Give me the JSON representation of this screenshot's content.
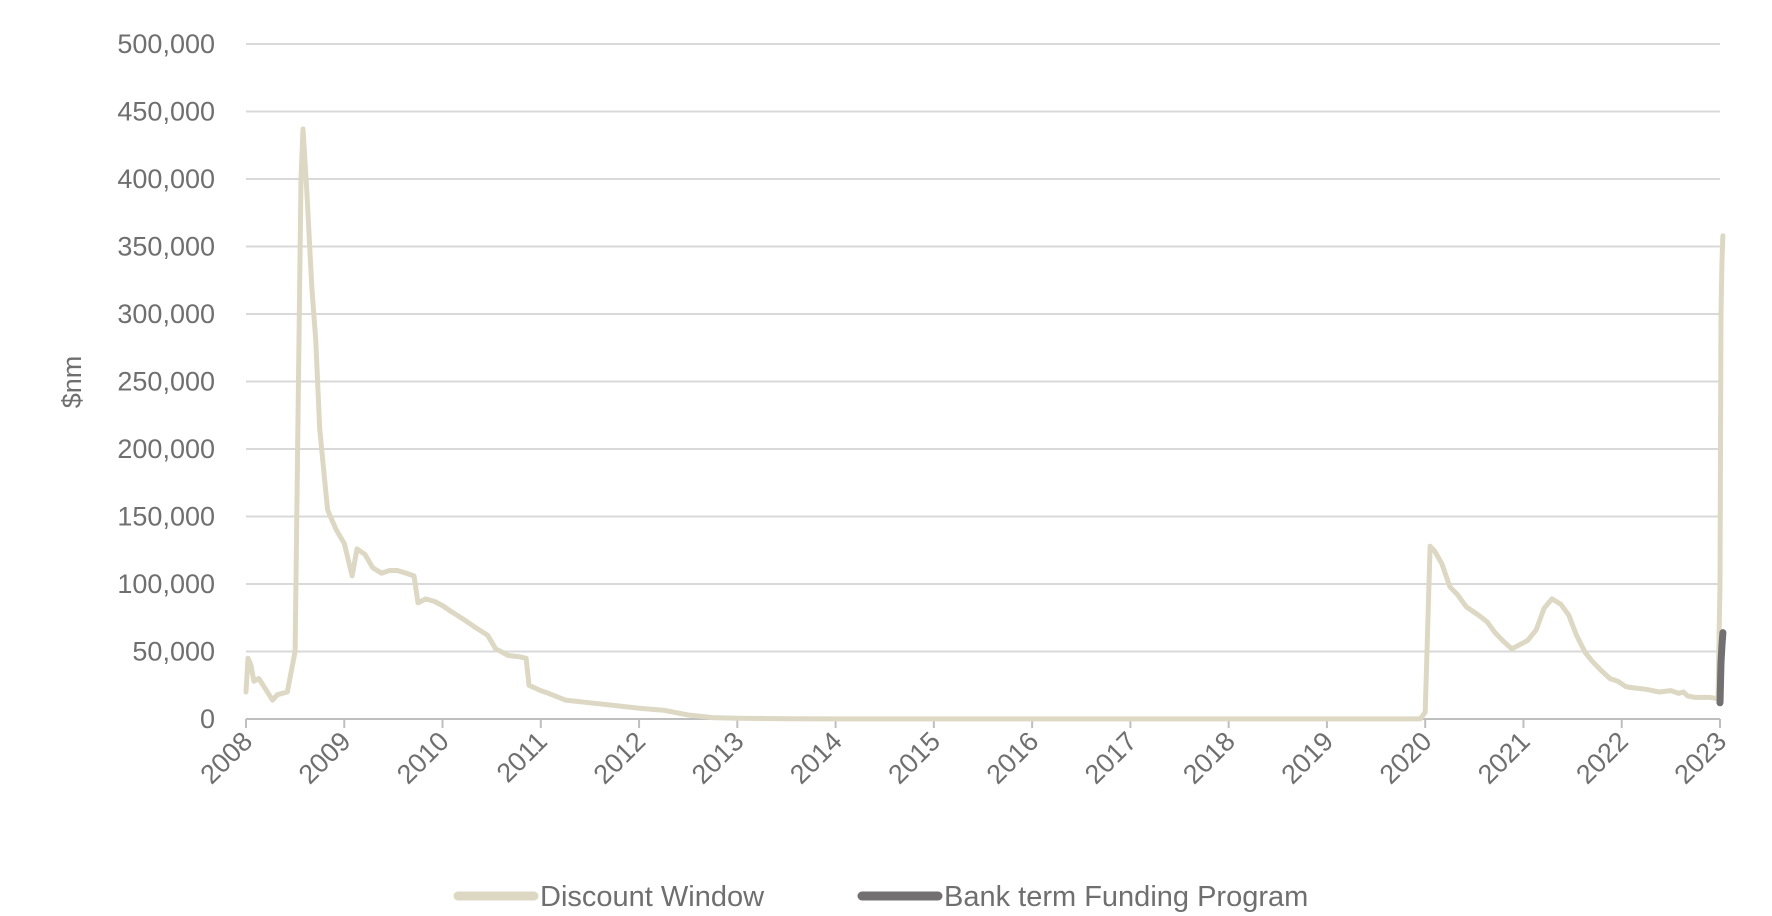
{
  "chart_data": {
    "type": "line",
    "title": "",
    "xlabel": "",
    "ylabel": "$nm",
    "xlim": [
      2008,
      2023
    ],
    "ylim": [
      0,
      500000
    ],
    "y_ticks": [
      0,
      50000,
      100000,
      150000,
      200000,
      250000,
      300000,
      350000,
      400000,
      450000,
      500000
    ],
    "y_tick_labels": [
      "0",
      "50,000",
      "100,000",
      "150,000",
      "200,000",
      "250,000",
      "300,000",
      "350,000",
      "400,000",
      "450,000",
      "500,000"
    ],
    "x_ticks": [
      2008,
      2009,
      2010,
      2011,
      2012,
      2013,
      2014,
      2015,
      2016,
      2017,
      2018,
      2019,
      2020,
      2021,
      2022,
      2023
    ],
    "x_tick_labels": [
      "2008",
      "2009",
      "2010",
      "2011",
      "2012",
      "2013",
      "2014",
      "2015",
      "2016",
      "2017",
      "2018",
      "2019",
      "2020",
      "2021",
      "2022",
      "2023"
    ],
    "grid": "horizontal",
    "legend_position": "bottom-center",
    "series": [
      {
        "name": "Discount Window",
        "color": "#ddd8c4",
        "points": [
          [
            2008.0,
            20000
          ],
          [
            2008.02,
            45000
          ],
          [
            2008.05,
            40000
          ],
          [
            2008.08,
            28000
          ],
          [
            2008.13,
            30000
          ],
          [
            2008.2,
            22000
          ],
          [
            2008.27,
            14000
          ],
          [
            2008.32,
            18000
          ],
          [
            2008.42,
            20000
          ],
          [
            2008.5,
            50000
          ],
          [
            2008.56,
            400000
          ],
          [
            2008.58,
            437000
          ],
          [
            2008.62,
            390000
          ],
          [
            2008.67,
            320000
          ],
          [
            2008.71,
            280000
          ],
          [
            2008.75,
            215000
          ],
          [
            2008.79,
            185000
          ],
          [
            2008.83,
            155000
          ],
          [
            2008.87,
            148000
          ],
          [
            2008.92,
            140000
          ],
          [
            2008.96,
            135000
          ],
          [
            2009.0,
            130000
          ],
          [
            2009.04,
            118000
          ],
          [
            2009.08,
            106000
          ],
          [
            2009.13,
            126000
          ],
          [
            2009.21,
            122000
          ],
          [
            2009.29,
            112000
          ],
          [
            2009.38,
            108000
          ],
          [
            2009.46,
            110000
          ],
          [
            2009.54,
            110000
          ],
          [
            2009.63,
            108000
          ],
          [
            2009.71,
            106000
          ],
          [
            2009.75,
            86000
          ],
          [
            2009.83,
            89000
          ],
          [
            2009.92,
            87000
          ],
          [
            2010.0,
            84000
          ],
          [
            2010.08,
            80000
          ],
          [
            2010.21,
            74000
          ],
          [
            2010.33,
            68000
          ],
          [
            2010.46,
            62000
          ],
          [
            2010.54,
            52000
          ],
          [
            2010.67,
            47000
          ],
          [
            2010.79,
            46000
          ],
          [
            2010.85,
            45000
          ],
          [
            2010.88,
            25000
          ],
          [
            2011.0,
            21000
          ],
          [
            2011.08,
            19000
          ],
          [
            2011.25,
            14000
          ],
          [
            2011.5,
            12000
          ],
          [
            2011.75,
            10000
          ],
          [
            2012.0,
            8000
          ],
          [
            2012.25,
            6500
          ],
          [
            2012.5,
            3000
          ],
          [
            2012.75,
            1000
          ],
          [
            2013.0,
            500
          ],
          [
            2013.5,
            200
          ],
          [
            2014.0,
            100
          ],
          [
            2016.0,
            50
          ],
          [
            2018.0,
            50
          ],
          [
            2019.5,
            50
          ],
          [
            2019.95,
            100
          ],
          [
            2020.0,
            5000
          ],
          [
            2020.05,
            128000
          ],
          [
            2020.1,
            124000
          ],
          [
            2020.17,
            115000
          ],
          [
            2020.25,
            98000
          ],
          [
            2020.33,
            92000
          ],
          [
            2020.42,
            83000
          ],
          [
            2020.54,
            77000
          ],
          [
            2020.63,
            72000
          ],
          [
            2020.71,
            64000
          ],
          [
            2020.79,
            58000
          ],
          [
            2020.88,
            52000
          ],
          [
            2020.96,
            55000
          ],
          [
            2021.04,
            58000
          ],
          [
            2021.13,
            66000
          ],
          [
            2021.21,
            82000
          ],
          [
            2021.29,
            89000
          ],
          [
            2021.38,
            85000
          ],
          [
            2021.46,
            77000
          ],
          [
            2021.54,
            62000
          ],
          [
            2021.63,
            49000
          ],
          [
            2021.71,
            42000
          ],
          [
            2021.79,
            36000
          ],
          [
            2021.88,
            30000
          ],
          [
            2021.96,
            28000
          ],
          [
            2022.04,
            24000
          ],
          [
            2022.13,
            23000
          ],
          [
            2022.25,
            22000
          ],
          [
            2022.38,
            20000
          ],
          [
            2022.5,
            21000
          ],
          [
            2022.58,
            19000
          ],
          [
            2022.63,
            20000
          ],
          [
            2022.67,
            17000
          ],
          [
            2022.75,
            16000
          ],
          [
            2022.9,
            16000
          ],
          [
            2022.98,
            15000
          ],
          [
            2023.0,
            100000
          ],
          [
            2023.01,
            300000
          ],
          [
            2023.02,
            340000
          ],
          [
            2023.03,
            358000
          ]
        ]
      },
      {
        "name": "Bank term Funding Program",
        "color": "#727071",
        "points": [
          [
            2023.0,
            12000
          ],
          [
            2023.01,
            42000
          ],
          [
            2023.02,
            55000
          ],
          [
            2023.03,
            64000
          ]
        ]
      }
    ]
  }
}
